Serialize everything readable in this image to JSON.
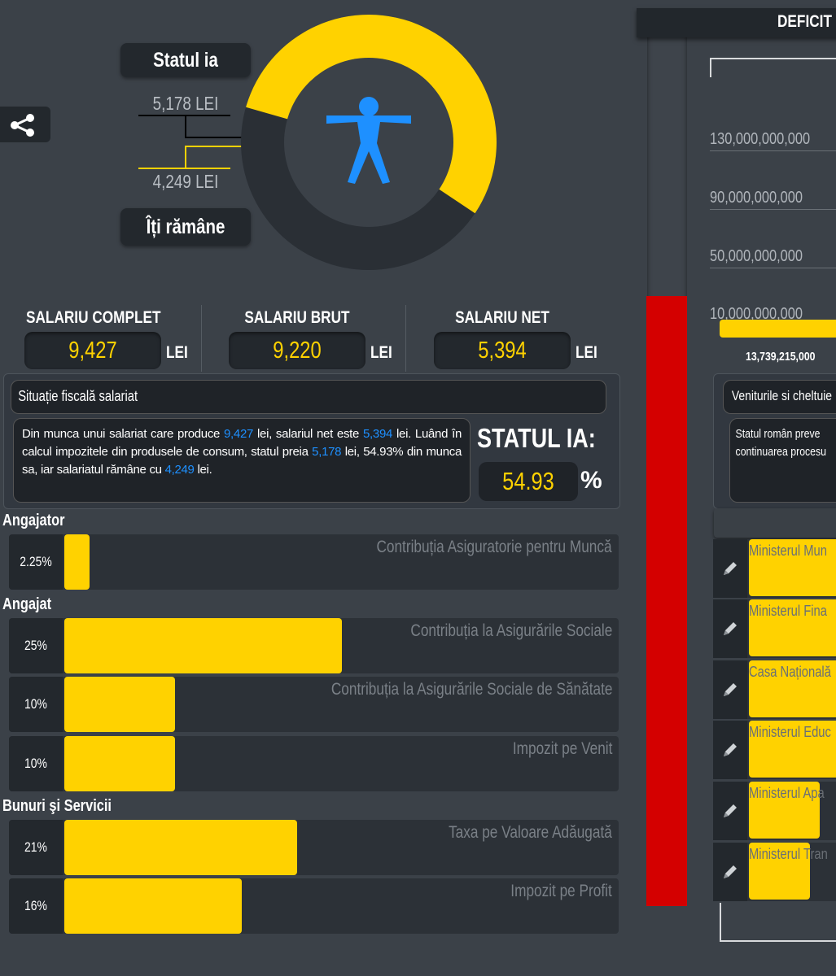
{
  "share": {
    "icon": "share-icon"
  },
  "donut": {
    "taken_label": "Statul ia",
    "taken_value": "5,178 LEI",
    "remaining_value": "4,249 LEI",
    "remaining_label": "Îți rămâne",
    "taken_fraction": 0.5493,
    "colors": {
      "taken": "#ffd200",
      "remaining": "#2a2f35",
      "figure": "#1e90ff"
    }
  },
  "salaries": [
    {
      "title": "SALARIU COMPLET",
      "value": "9,427",
      "unit": "LEI"
    },
    {
      "title": "SALARIU BRUT",
      "value": "9,220",
      "unit": "LEI"
    },
    {
      "title": "SALARIU NET",
      "value": "5,394",
      "unit": "LEI"
    }
  ],
  "situatie": {
    "title": "Situație fiscală salariat",
    "text": {
      "p1": "Din munca unui salariat care produce ",
      "v1": "9,427",
      "p2": " lei, salariul net este ",
      "v2": "5,394",
      "p3": " lei. Luând în calcul impozitele din produsele de consum, statul preia ",
      "v3": "5,178",
      "p4": " lei, 54.93% din munca sa, iar salariatul rămâne cu ",
      "v4": "4,249",
      "p5": " lei."
    },
    "statul_label": "STATUL IA:",
    "statul_pct": "54.93",
    "pct_sign": "%"
  },
  "taxes": {
    "angajator_label": "Angajator",
    "angajat_label": "Angajat",
    "bunuri_label": "Bunuri şi Servicii",
    "rows": [
      {
        "pct": "2.25%",
        "name": "Contribuția Asiguratorie pentru Muncă",
        "fill": 0.045
      },
      {
        "pct": "25%",
        "name": "Contribuția la Asigurările Sociale",
        "fill": 0.5
      },
      {
        "pct": "10%",
        "name": "Contribuția la Asigurările Sociale de Sănătate",
        "fill": 0.2
      },
      {
        "pct": "10%",
        "name": "Impozit pe Venit",
        "fill": 0.2
      },
      {
        "pct": "21%",
        "name": "Taxa pe Valoare Adăugată",
        "fill": 0.42
      },
      {
        "pct": "16%",
        "name": "Impozit pe Profit",
        "fill": 0.32
      }
    ]
  },
  "deficit": {
    "title": "DEFICIT B",
    "ticks": [
      "130,000,000,000",
      "90,000,000,000",
      "50,000,000,000",
      "10,000,000,000"
    ],
    "bar_value": "13,739,215,000",
    "panel_title": "Veniturile si cheltuie",
    "panel_text_1": "Statul român preve",
    "panel_text_2": "continuarea procesu",
    "ministries": [
      {
        "name": "Ministerul Mun",
        "fill": 1.0
      },
      {
        "name": "Ministerul Fina",
        "fill": 1.0
      },
      {
        "name": "Casa Națională",
        "fill": 1.0
      },
      {
        "name": "Ministerul Educ",
        "fill": 1.0
      },
      {
        "name": "Ministerul Apa",
        "fill": 0.75
      },
      {
        "name": "Ministerul Tran",
        "fill": 0.65
      }
    ]
  }
}
